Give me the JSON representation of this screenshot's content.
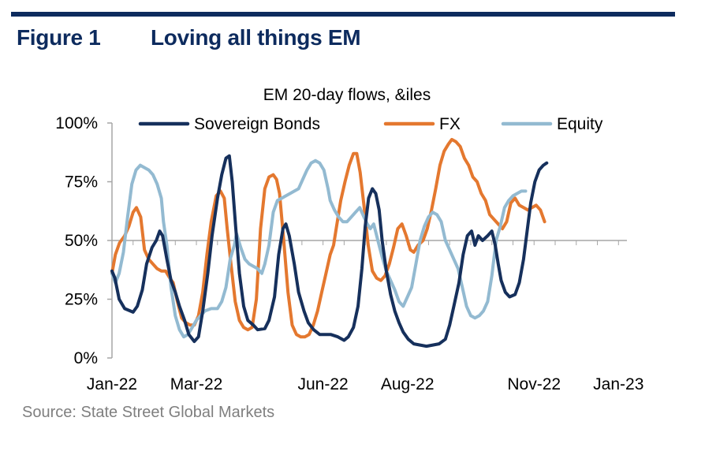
{
  "figure": {
    "label": "Figure 1",
    "title": "Loving all things EM"
  },
  "source": "Source: State Street Global Markets",
  "colors": {
    "brand": "#0d2b5e",
    "sovereign_bonds": "#16305c",
    "fx": "#e4782f",
    "equity": "#93bad1",
    "axis": "#a6a6a6",
    "source_text": "#7f7f7f"
  },
  "chart_data": {
    "type": "line",
    "title": "EM 20-day flows, &iles",
    "xlabel": "",
    "ylabel": "",
    "ylim": [
      0,
      100
    ],
    "yticks": [
      0,
      25,
      50,
      75,
      100
    ],
    "ytick_labels": [
      "0%",
      "25%",
      "50%",
      "75%",
      "100%"
    ],
    "xlim": [
      0,
      12.2
    ],
    "x_ticks": [
      {
        "label": "Jan-22",
        "x": 0
      },
      {
        "label": "Mar-22",
        "x": 2
      },
      {
        "label": "Jun-22",
        "x": 5
      },
      {
        "label": "Aug-22",
        "x": 7
      },
      {
        "label": "Nov-22",
        "x": 10
      },
      {
        "label": "Jan-23",
        "x": 12
      }
    ],
    "grid": false,
    "legend": "top",
    "series": [
      {
        "name": "Sovereign Bonds",
        "color": "#16305c",
        "points": [
          [
            0,
            37
          ],
          [
            0.07,
            34
          ],
          [
            0.17,
            25
          ],
          [
            0.3,
            21
          ],
          [
            0.5,
            19.5
          ],
          [
            0.6,
            22
          ],
          [
            0.72,
            29
          ],
          [
            0.82,
            40
          ],
          [
            0.95,
            47
          ],
          [
            1.05,
            50
          ],
          [
            1.13,
            54
          ],
          [
            1.2,
            52
          ],
          [
            1.3,
            42
          ],
          [
            1.4,
            33
          ],
          [
            1.5,
            28
          ],
          [
            1.6,
            22
          ],
          [
            1.72,
            16
          ],
          [
            1.82,
            10
          ],
          [
            1.95,
            7
          ],
          [
            2.05,
            9
          ],
          [
            2.15,
            20
          ],
          [
            2.27,
            36
          ],
          [
            2.37,
            52
          ],
          [
            2.5,
            68
          ],
          [
            2.6,
            78
          ],
          [
            2.7,
            85
          ],
          [
            2.78,
            86
          ],
          [
            2.85,
            75
          ],
          [
            2.93,
            56
          ],
          [
            3.02,
            36
          ],
          [
            3.12,
            22
          ],
          [
            3.22,
            16
          ],
          [
            3.35,
            14
          ],
          [
            3.45,
            12
          ],
          [
            3.62,
            12.5
          ],
          [
            3.72,
            16
          ],
          [
            3.85,
            26
          ],
          [
            3.95,
            44
          ],
          [
            4.05,
            55
          ],
          [
            4.12,
            57
          ],
          [
            4.2,
            52
          ],
          [
            4.32,
            40
          ],
          [
            4.42,
            28
          ],
          [
            4.55,
            20
          ],
          [
            4.65,
            15
          ],
          [
            4.78,
            12
          ],
          [
            4.92,
            10
          ],
          [
            5.05,
            10
          ],
          [
            5.18,
            10
          ],
          [
            5.35,
            9
          ],
          [
            5.5,
            7.5
          ],
          [
            5.6,
            9
          ],
          [
            5.72,
            13
          ],
          [
            5.83,
            22
          ],
          [
            5.92,
            38
          ],
          [
            6.0,
            56
          ],
          [
            6.08,
            68
          ],
          [
            6.17,
            72
          ],
          [
            6.25,
            70
          ],
          [
            6.33,
            63
          ],
          [
            6.4,
            50
          ],
          [
            6.5,
            37
          ],
          [
            6.6,
            27
          ],
          [
            6.7,
            20
          ],
          [
            6.8,
            15
          ],
          [
            6.9,
            11
          ],
          [
            7.02,
            8
          ],
          [
            7.15,
            6
          ],
          [
            7.3,
            5.5
          ],
          [
            7.45,
            5
          ],
          [
            7.6,
            5.5
          ],
          [
            7.75,
            6
          ],
          [
            7.9,
            8
          ],
          [
            8.0,
            14
          ],
          [
            8.1,
            22
          ],
          [
            8.22,
            32
          ],
          [
            8.32,
            44
          ],
          [
            8.42,
            52
          ],
          [
            8.52,
            54
          ],
          [
            8.6,
            48
          ],
          [
            8.68,
            52
          ],
          [
            8.78,
            50
          ],
          [
            8.9,
            52
          ],
          [
            9.0,
            54
          ],
          [
            9.08,
            48
          ],
          [
            9.15,
            40
          ],
          [
            9.22,
            33
          ],
          [
            9.32,
            28
          ],
          [
            9.42,
            26
          ],
          [
            9.55,
            27
          ],
          [
            9.65,
            32
          ],
          [
            9.75,
            42
          ],
          [
            9.85,
            56
          ],
          [
            9.92,
            66
          ],
          [
            10.02,
            75
          ],
          [
            10.12,
            80
          ],
          [
            10.22,
            82
          ],
          [
            10.3,
            83
          ]
        ]
      },
      {
        "name": "FX",
        "color": "#e4782f",
        "points": [
          [
            0,
            36
          ],
          [
            0.08,
            44
          ],
          [
            0.18,
            49
          ],
          [
            0.3,
            52
          ],
          [
            0.4,
            56
          ],
          [
            0.5,
            62
          ],
          [
            0.58,
            64
          ],
          [
            0.68,
            60
          ],
          [
            0.77,
            46
          ],
          [
            0.87,
            42
          ],
          [
            0.97,
            40
          ],
          [
            1.07,
            38
          ],
          [
            1.17,
            37
          ],
          [
            1.27,
            37
          ],
          [
            1.37,
            34
          ],
          [
            1.45,
            32
          ],
          [
            1.55,
            24
          ],
          [
            1.65,
            17
          ],
          [
            1.75,
            15
          ],
          [
            1.85,
            14
          ],
          [
            1.95,
            14
          ],
          [
            2.05,
            18
          ],
          [
            2.15,
            28
          ],
          [
            2.25,
            44
          ],
          [
            2.35,
            58
          ],
          [
            2.47,
            69
          ],
          [
            2.57,
            71
          ],
          [
            2.66,
            68
          ],
          [
            2.73,
            55
          ],
          [
            2.82,
            40
          ],
          [
            2.92,
            24
          ],
          [
            3.02,
            16
          ],
          [
            3.12,
            13
          ],
          [
            3.22,
            12
          ],
          [
            3.32,
            13
          ],
          [
            3.42,
            25
          ],
          [
            3.52,
            55
          ],
          [
            3.62,
            72
          ],
          [
            3.72,
            77
          ],
          [
            3.82,
            78
          ],
          [
            3.9,
            76
          ],
          [
            3.97,
            70
          ],
          [
            4.07,
            50
          ],
          [
            4.17,
            28
          ],
          [
            4.27,
            14
          ],
          [
            4.37,
            10
          ],
          [
            4.47,
            9
          ],
          [
            4.57,
            9
          ],
          [
            4.67,
            10
          ],
          [
            4.77,
            14
          ],
          [
            4.87,
            20
          ],
          [
            4.97,
            28
          ],
          [
            5.07,
            36
          ],
          [
            5.17,
            44
          ],
          [
            5.25,
            48
          ],
          [
            5.32,
            56
          ],
          [
            5.42,
            67
          ],
          [
            5.52,
            75
          ],
          [
            5.62,
            82
          ],
          [
            5.72,
            87
          ],
          [
            5.8,
            87
          ],
          [
            5.88,
            79
          ],
          [
            5.97,
            65
          ],
          [
            6.07,
            48
          ],
          [
            6.17,
            37
          ],
          [
            6.27,
            34
          ],
          [
            6.37,
            33
          ],
          [
            6.47,
            35
          ],
          [
            6.57,
            40
          ],
          [
            6.67,
            47
          ],
          [
            6.77,
            55
          ],
          [
            6.87,
            57
          ],
          [
            6.97,
            52
          ],
          [
            7.07,
            46
          ],
          [
            7.15,
            45
          ],
          [
            7.25,
            48
          ],
          [
            7.37,
            50
          ],
          [
            7.47,
            55
          ],
          [
            7.57,
            63
          ],
          [
            7.67,
            72
          ],
          [
            7.77,
            82
          ],
          [
            7.87,
            88
          ],
          [
            7.97,
            91
          ],
          [
            8.05,
            93
          ],
          [
            8.15,
            92
          ],
          [
            8.25,
            90
          ],
          [
            8.35,
            85
          ],
          [
            8.45,
            82
          ],
          [
            8.55,
            77
          ],
          [
            8.65,
            75
          ],
          [
            8.75,
            70
          ],
          [
            8.85,
            67
          ],
          [
            8.95,
            61
          ],
          [
            9.05,
            59
          ],
          [
            9.15,
            57
          ],
          [
            9.25,
            55
          ],
          [
            9.35,
            58
          ],
          [
            9.45,
            66
          ],
          [
            9.55,
            68
          ],
          [
            9.65,
            65
          ],
          [
            9.75,
            64
          ],
          [
            9.85,
            63
          ],
          [
            9.95,
            64
          ],
          [
            10.05,
            65
          ],
          [
            10.15,
            63
          ],
          [
            10.25,
            58
          ]
        ]
      },
      {
        "name": "Equity",
        "color": "#93bad1",
        "points": [
          [
            0,
            36
          ],
          [
            0.08,
            32
          ],
          [
            0.17,
            36
          ],
          [
            0.27,
            45
          ],
          [
            0.37,
            60
          ],
          [
            0.47,
            74
          ],
          [
            0.57,
            80
          ],
          [
            0.67,
            82
          ],
          [
            0.77,
            81
          ],
          [
            0.87,
            80
          ],
          [
            0.97,
            78
          ],
          [
            1.07,
            74
          ],
          [
            1.17,
            68
          ],
          [
            1.22,
            58
          ],
          [
            1.3,
            48
          ],
          [
            1.4,
            30
          ],
          [
            1.5,
            18
          ],
          [
            1.6,
            12
          ],
          [
            1.7,
            9
          ],
          [
            1.8,
            10
          ],
          [
            1.9,
            13
          ],
          [
            2.0,
            16
          ],
          [
            2.1,
            18
          ],
          [
            2.2,
            20
          ],
          [
            2.35,
            21
          ],
          [
            2.5,
            21
          ],
          [
            2.6,
            24
          ],
          [
            2.7,
            30
          ],
          [
            2.8,
            42
          ],
          [
            2.9,
            48
          ],
          [
            2.95,
            53
          ],
          [
            3.05,
            47
          ],
          [
            3.15,
            42
          ],
          [
            3.25,
            40
          ],
          [
            3.35,
            39
          ],
          [
            3.45,
            38
          ],
          [
            3.55,
            36
          ],
          [
            3.62,
            40
          ],
          [
            3.72,
            48
          ],
          [
            3.82,
            62
          ],
          [
            3.92,
            67
          ],
          [
            4.02,
            68
          ],
          [
            4.12,
            69
          ],
          [
            4.22,
            70
          ],
          [
            4.32,
            71
          ],
          [
            4.42,
            72
          ],
          [
            4.52,
            76
          ],
          [
            4.62,
            80
          ],
          [
            4.72,
            83
          ],
          [
            4.82,
            84
          ],
          [
            4.92,
            83
          ],
          [
            5.02,
            80
          ],
          [
            5.12,
            72
          ],
          [
            5.17,
            67
          ],
          [
            5.27,
            63
          ],
          [
            5.37,
            60
          ],
          [
            5.47,
            58
          ],
          [
            5.57,
            58
          ],
          [
            5.67,
            60
          ],
          [
            5.77,
            62
          ],
          [
            5.87,
            64
          ],
          [
            5.97,
            60
          ],
          [
            6.05,
            57
          ],
          [
            6.12,
            55
          ],
          [
            6.2,
            57
          ],
          [
            6.3,
            50
          ],
          [
            6.4,
            43
          ],
          [
            6.5,
            37
          ],
          [
            6.6,
            33
          ],
          [
            6.7,
            29
          ],
          [
            6.8,
            24
          ],
          [
            6.9,
            22
          ],
          [
            7.0,
            26
          ],
          [
            7.1,
            30
          ],
          [
            7.2,
            40
          ],
          [
            7.3,
            50
          ],
          [
            7.4,
            56
          ],
          [
            7.5,
            60
          ],
          [
            7.6,
            62
          ],
          [
            7.7,
            61
          ],
          [
            7.8,
            58
          ],
          [
            7.9,
            50
          ],
          [
            8.0,
            46
          ],
          [
            8.1,
            42
          ],
          [
            8.2,
            38
          ],
          [
            8.3,
            30
          ],
          [
            8.4,
            22
          ],
          [
            8.5,
            18
          ],
          [
            8.6,
            17
          ],
          [
            8.7,
            18
          ],
          [
            8.8,
            20
          ],
          [
            8.9,
            24
          ],
          [
            9.0,
            35
          ],
          [
            9.1,
            50
          ],
          [
            9.2,
            56
          ],
          [
            9.3,
            64
          ],
          [
            9.4,
            67
          ],
          [
            9.5,
            69
          ],
          [
            9.6,
            70
          ],
          [
            9.7,
            71
          ],
          [
            9.8,
            71
          ]
        ]
      }
    ]
  }
}
